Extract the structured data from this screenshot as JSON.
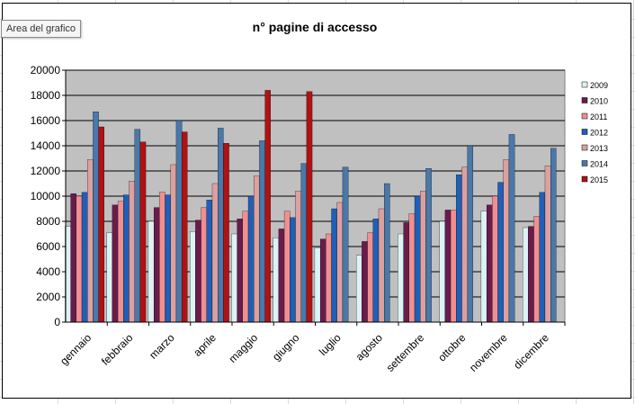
{
  "tooltip": "Area del grafico",
  "chart_data": {
    "type": "bar",
    "title": "n° pagine di accesso",
    "xlabel": "",
    "ylabel": "",
    "ylim": [
      0,
      20000
    ],
    "yticks": [
      "0",
      "2000",
      "4000",
      "6000",
      "8000",
      "10000",
      "12000",
      "14000",
      "16000",
      "18000",
      "20000"
    ],
    "grid": true,
    "legend_position": "right",
    "plot_background": "#c0c0c0",
    "categories": [
      "gennaio",
      "febbraio",
      "marzo",
      "aprile",
      "maggio",
      "giugno",
      "luglio",
      "agosto",
      "settembre",
      "ottobre",
      "novembre",
      "dicembre"
    ],
    "series": [
      {
        "name": "2009",
        "color": "#ddf2f4",
        "values": [
          7600,
          7100,
          8000,
          7200,
          7000,
          6700,
          5900,
          5300,
          7000,
          8000,
          8800,
          7500
        ]
      },
      {
        "name": "2010",
        "color": "#6a1b4d",
        "values": [
          10200,
          9300,
          9100,
          8100,
          8200,
          7400,
          6600,
          6400,
          7900,
          8900,
          9300,
          7600
        ]
      },
      {
        "name": "2011",
        "color": "#f08f8f",
        "values": [
          10000,
          9600,
          10300,
          9100,
          8800,
          8800,
          7000,
          7100,
          8600,
          8900,
          10000,
          8400
        ]
      },
      {
        "name": "2012",
        "color": "#1f5fb8",
        "values": [
          10300,
          10100,
          10100,
          9700,
          10000,
          8300,
          9000,
          8200,
          10000,
          11700,
          11100,
          10300
        ]
      },
      {
        "name": "2013",
        "color": "#dca0a0",
        "values": [
          12900,
          11200,
          12500,
          11000,
          11600,
          10400,
          9500,
          9000,
          10400,
          12300,
          12900,
          12400
        ]
      },
      {
        "name": "2014",
        "color": "#4a78a8",
        "values": [
          16700,
          15300,
          16000,
          15400,
          14400,
          12600,
          12300,
          11000,
          12200,
          14000,
          14900,
          13800
        ]
      },
      {
        "name": "2015",
        "color": "#b01212",
        "values": [
          15500,
          14300,
          15100,
          14200,
          18400,
          18300,
          null,
          null,
          null,
          null,
          null,
          null
        ]
      }
    ]
  }
}
